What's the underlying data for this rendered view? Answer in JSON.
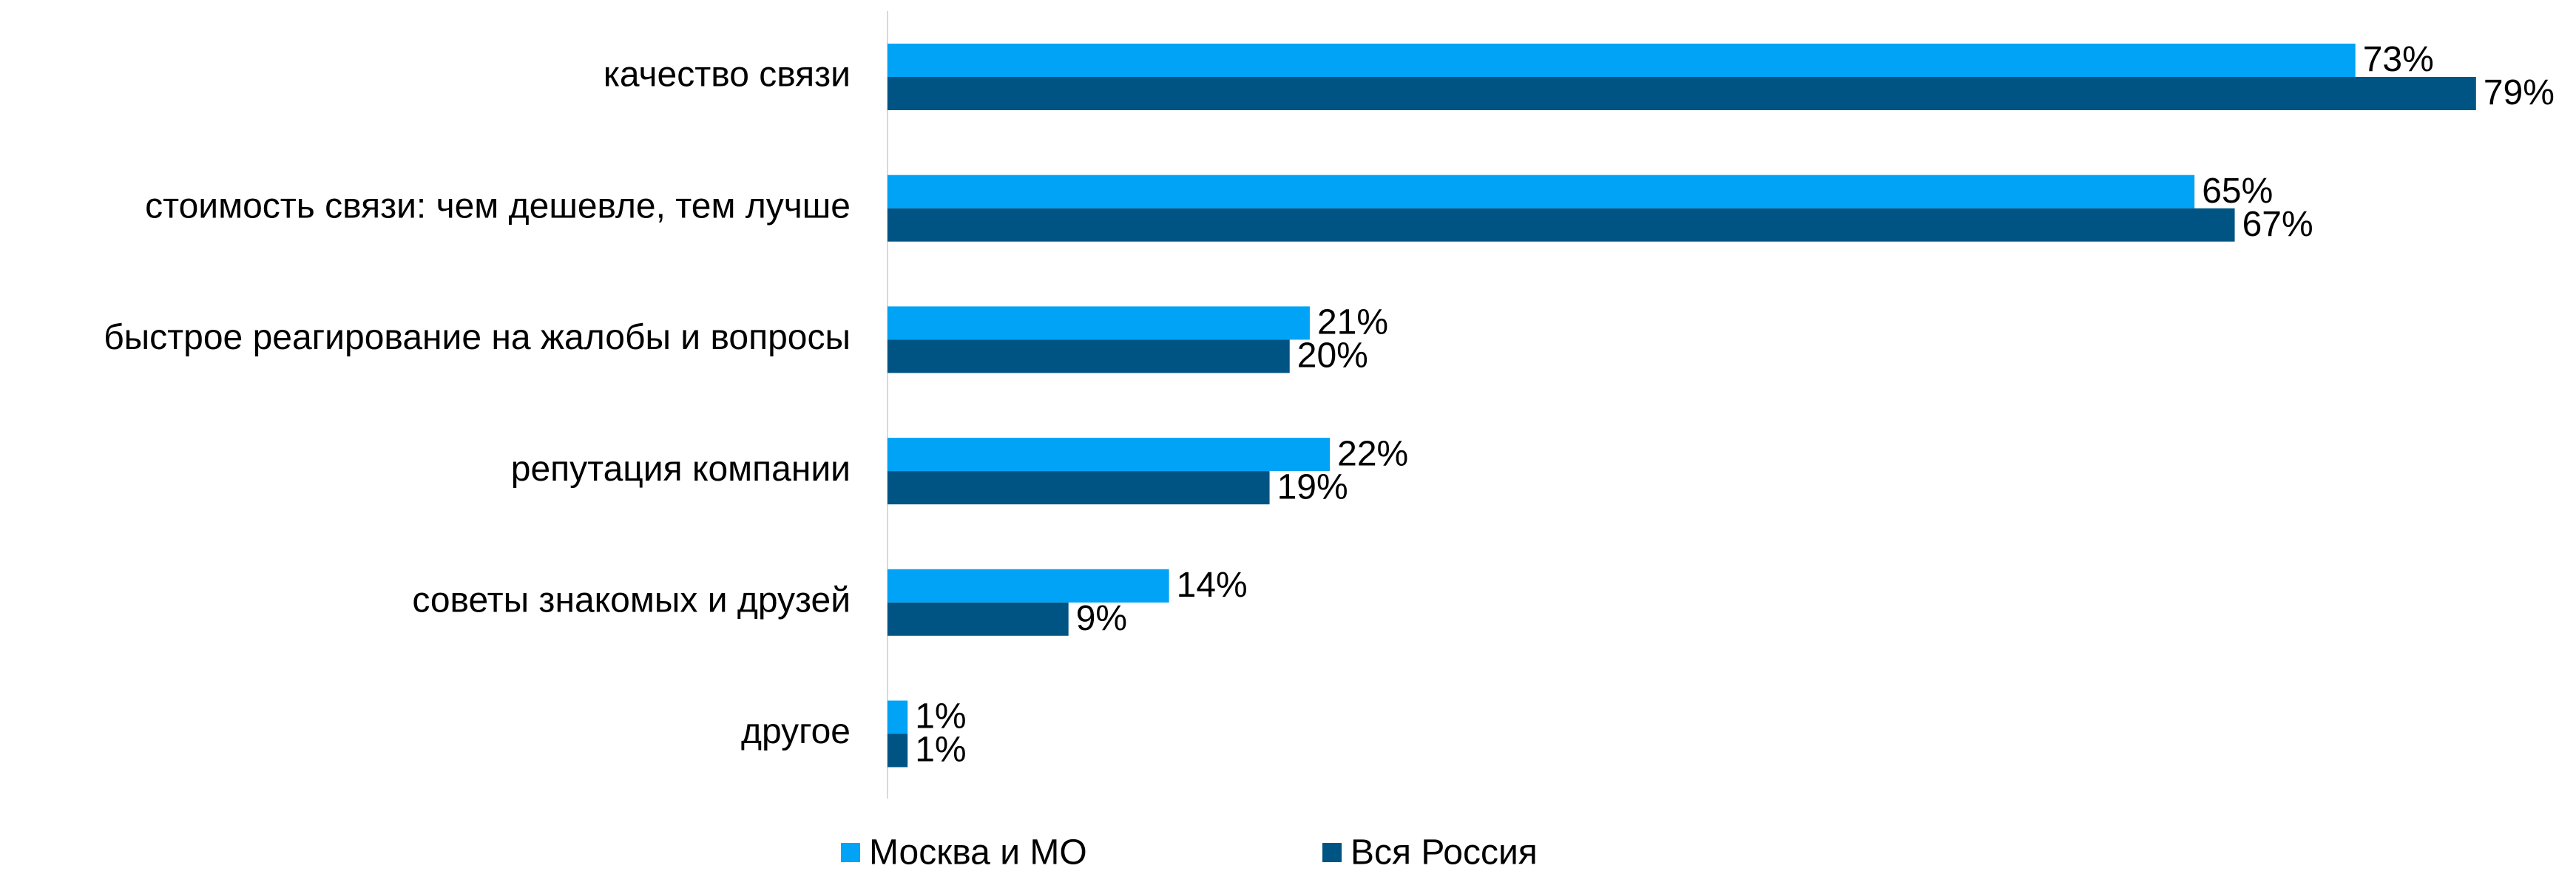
{
  "chart_data": {
    "type": "hbar",
    "categories": [
      "качество связи",
      "стоимость связи: чем дешевле, тем лучше",
      "быстрое реагирование на жалобы и вопросы",
      "репутация компании",
      "советы знакомых и друзей",
      "другое"
    ],
    "series": [
      {
        "name": "Москва и МО",
        "color": "#00a3f5",
        "values": [
          73,
          65,
          21,
          22,
          14,
          1
        ],
        "value_labels": [
          "73%",
          "65%",
          "21%",
          "22%",
          "14%",
          "1%"
        ]
      },
      {
        "name": "Вся Россия",
        "color": "#005483",
        "values": [
          79,
          67,
          20,
          19,
          9,
          1
        ],
        "value_labels": [
          "79%",
          "67%",
          "20%",
          "19%",
          "9%",
          "1%"
        ]
      }
    ],
    "xlim": [
      0,
      80
    ],
    "legend": "bottom"
  }
}
